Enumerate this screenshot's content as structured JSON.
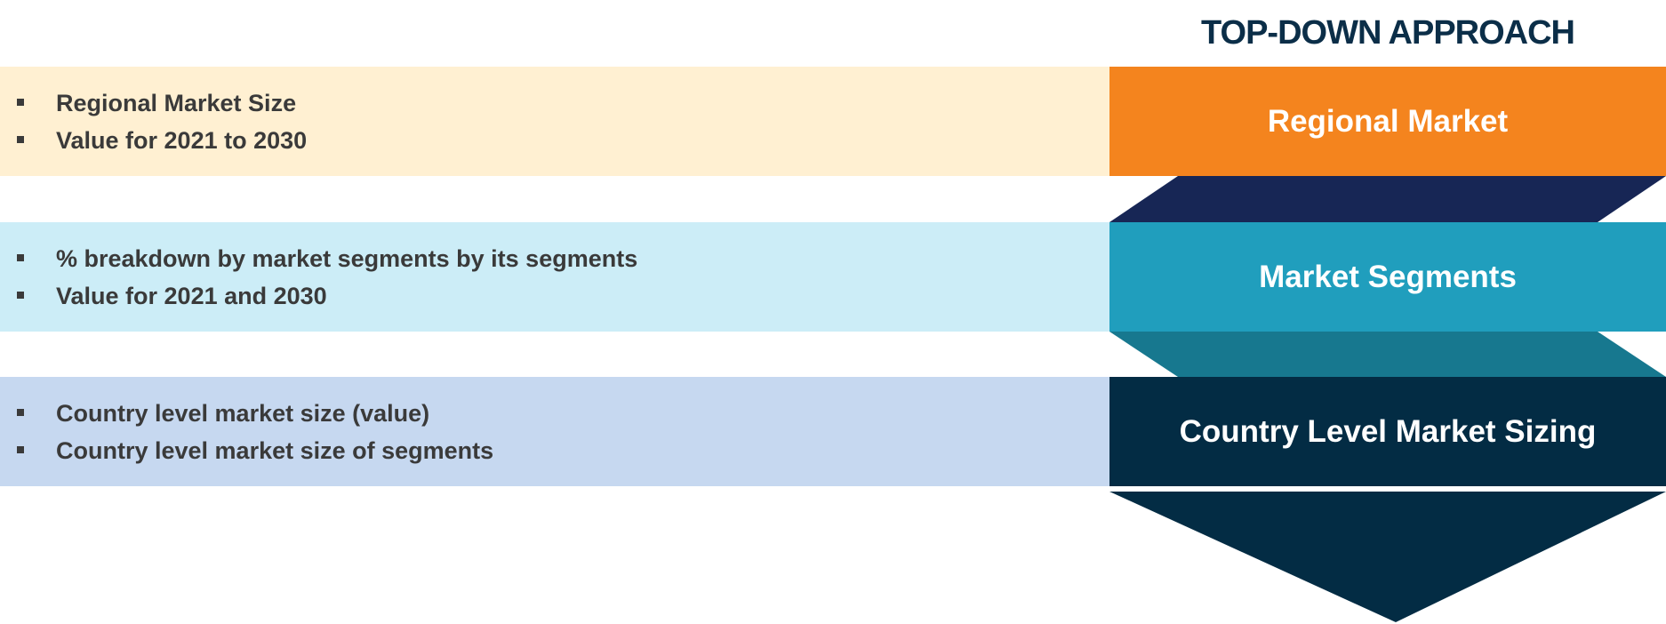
{
  "title": "TOP-DOWN APPROACH",
  "stages": [
    {
      "label": "Regional Market",
      "bullets": [
        "Regional Market Size",
        "Value for 2021 to 2030"
      ],
      "box_color": "#f4841e",
      "band_color": "#fff0d2"
    },
    {
      "label": "Market Segments",
      "bullets": [
        "% breakdown by market segments by its segments",
        "Value for 2021 and 2030"
      ],
      "box_color": "#209ebd",
      "band_color": "#ccedf7"
    },
    {
      "label": "Country Level Market Sizing",
      "bullets": [
        "Country level market size (value)",
        "Country level market size of segments"
      ],
      "box_color": "#032c44",
      "band_color": "#c6d8f0"
    }
  ],
  "connector_colors": [
    "#172655",
    "#17788f",
    "#032c44"
  ]
}
